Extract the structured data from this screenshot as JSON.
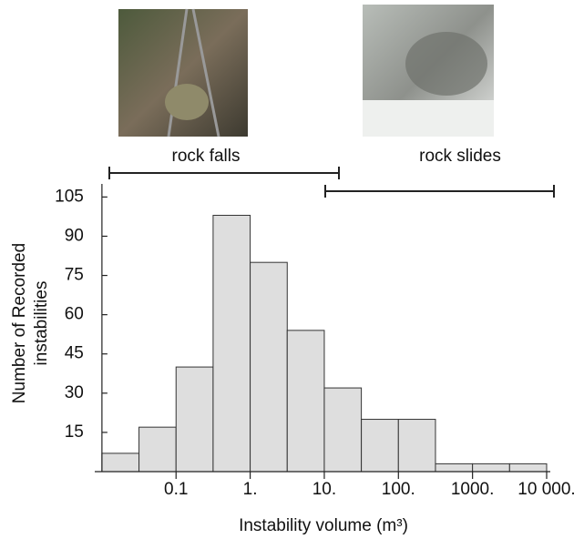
{
  "chart_data": {
    "type": "histogram",
    "annotations": [
      "rock falls",
      "rock slides"
    ],
    "x_label": "Instability volume (m³)",
    "y_label": [
      "Number of Recorded",
      "instabilities"
    ],
    "bins": [
      0.01,
      0.03162,
      0.1,
      0.3162,
      1,
      3.162,
      10,
      31.62,
      100,
      316.2,
      1000,
      3162,
      10000
    ],
    "values": [
      7,
      17,
      40,
      98,
      80,
      54,
      32,
      20,
      20,
      3,
      3,
      3
    ],
    "color": "#dedede",
    "xscale": "log",
    "xlim": [
      0.008,
      10000
    ],
    "xticks": [
      0.1,
      {
        "value": 1,
        "label": "1."
      },
      {
        "value": 10,
        "label": "10."
      },
      {
        "value": 100,
        "label": "100."
      },
      {
        "value": 1000,
        "label": "1000."
      },
      {
        "value": 10000,
        "label": "10 000."
      }
    ],
    "ylim": [
      0,
      110
    ],
    "yticks": [
      15,
      30,
      45,
      60,
      75,
      90,
      105
    ]
  }
}
